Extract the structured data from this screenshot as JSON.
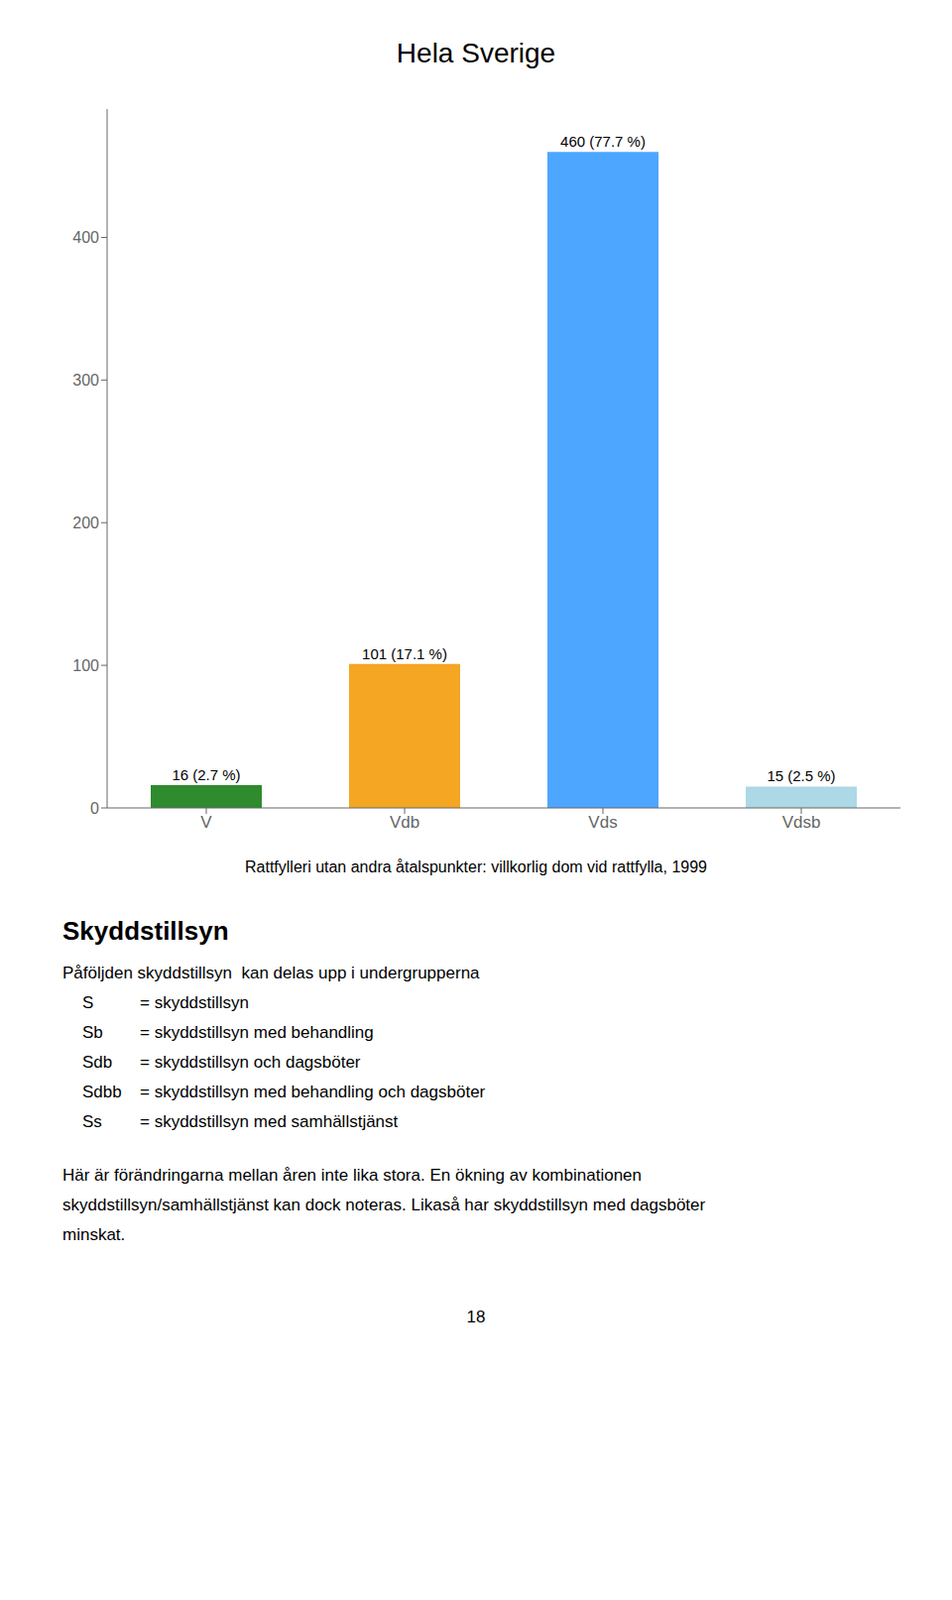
{
  "chart_data": {
    "type": "bar",
    "title": "Hela Sverige",
    "categories": [
      "V",
      "Vdb",
      "Vds",
      "Vdsb"
    ],
    "values": [
      16,
      101,
      460,
      15
    ],
    "value_labels": [
      "16 (2.7 %)",
      "101 (17.1 %)",
      "460 (77.7 %)",
      "15 (2.5 %)"
    ],
    "data_labels": true,
    "colors": [
      "#2e8b2e",
      "#f5a623",
      "#4da6ff",
      "#add8e6"
    ],
    "ylim": [
      0,
      490
    ],
    "yticks": [
      0,
      100,
      200,
      300,
      400
    ],
    "grid": false,
    "xlabel": "Rattfylleri utan andra åtalspunkter: villkorlig dom vid rattfylla, 1999",
    "annotations": [
      [
        "Skyddstillsyn"
      ],
      [
        "Påföljden skyddstillsyn  kan delas upp i undergrupperna"
      ],
      [
        "S",
        "= skyddstillsyn"
      ],
      [
        "Sb",
        "= skyddstillsyn med behandling"
      ],
      [
        "Sdb",
        "= skyddstillsyn och dagsböter"
      ],
      [
        "Sdbb",
        "= skyddstillsyn med behandling och dagsböter"
      ],
      [
        "Ss",
        "= skyddstillsyn med samhällstjänst"
      ],
      [
        "Här är förändringarna mellan åren inte lika stora. En ökning av kombinationen"
      ],
      [
        "skyddstillsyn/samhällstjänst kan dock noteras. Likaså har skyddstillsyn med dagsböter"
      ],
      [
        "minskat."
      ],
      [
        "18"
      ]
    ]
  }
}
